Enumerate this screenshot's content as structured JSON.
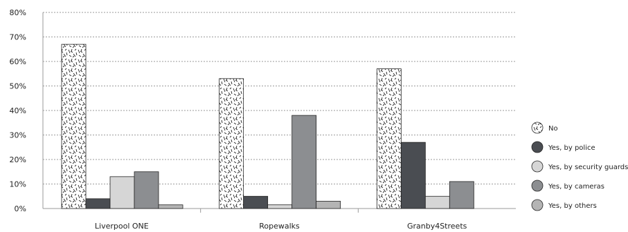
{
  "chart_data": {
    "type": "bar",
    "title": "",
    "xlabel": "",
    "ylabel": "",
    "ylim": [
      0,
      80
    ],
    "y_ticks": [
      "0%",
      "10%",
      "20%",
      "30%",
      "40%",
      "50%",
      "60%",
      "70%",
      "80%"
    ],
    "grid": true,
    "legend_position": "right",
    "categories": [
      "Liverpool ONE",
      "Ropewalks",
      "Granby4Streets"
    ],
    "series": [
      {
        "name": "No",
        "values": [
          67,
          53,
          57
        ],
        "color": "#ffffff",
        "pattern": "hatch"
      },
      {
        "name": "Yes, by police",
        "values": [
          4,
          5,
          27
        ],
        "color": "#4a4d52"
      },
      {
        "name": "Yes, by security guards",
        "values": [
          13,
          1.5,
          5
        ],
        "color": "#d6d6d6"
      },
      {
        "name": "Yes, by cameras",
        "values": [
          15,
          38,
          11
        ],
        "color": "#8c8e91"
      },
      {
        "name": "Yes, by others",
        "values": [
          1.5,
          3,
          null
        ],
        "color": "#b4b4b4"
      }
    ]
  }
}
